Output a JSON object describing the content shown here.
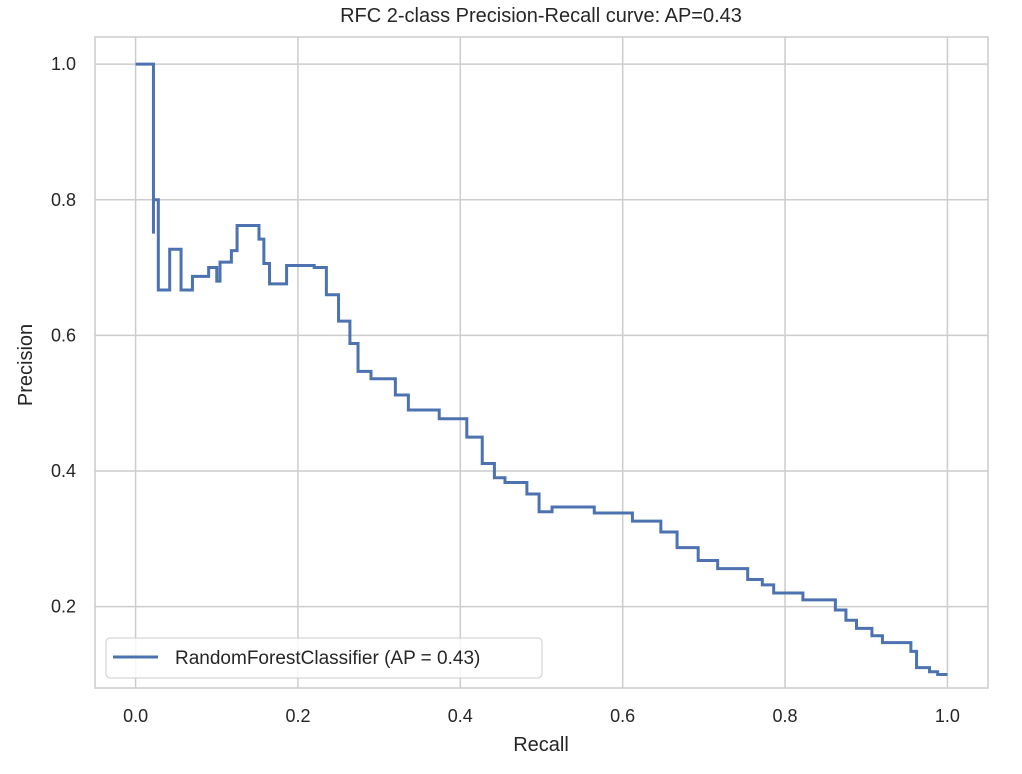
{
  "chart_data": {
    "type": "line",
    "title": "RFC 2-class Precision-Recall curve: AP=0.43",
    "xlabel": "Recall",
    "ylabel": "Precision",
    "xlim": [
      -0.05,
      1.05
    ],
    "ylim": [
      0.08,
      1.04
    ],
    "xticks": [
      0.0,
      0.2,
      0.4,
      0.6,
      0.8,
      1.0
    ],
    "xtick_labels": [
      "0.0",
      "0.2",
      "0.4",
      "0.6",
      "0.8",
      "1.0"
    ],
    "yticks": [
      0.2,
      0.4,
      0.6,
      0.8,
      1.0
    ],
    "ytick_labels": [
      "0.2",
      "0.4",
      "0.6",
      "0.8",
      "1.0"
    ],
    "grid": true,
    "legend_position": "lower-left",
    "series": [
      {
        "name": "RandomForestClassifier (AP = 0.43)",
        "color": "#4c72b0",
        "drawstyle": "steps-post",
        "points": [
          [
            0.0,
            1.0
          ],
          [
            0.022,
            1.0
          ],
          [
            0.022,
            0.75
          ],
          [
            0.022,
            0.8
          ],
          [
            0.028,
            0.8
          ],
          [
            0.028,
            0.667
          ],
          [
            0.042,
            0.667
          ],
          [
            0.042,
            0.727
          ],
          [
            0.056,
            0.727
          ],
          [
            0.056,
            0.667
          ],
          [
            0.07,
            0.667
          ],
          [
            0.07,
            0.687
          ],
          [
            0.09,
            0.687
          ],
          [
            0.09,
            0.7
          ],
          [
            0.1,
            0.7
          ],
          [
            0.1,
            0.68
          ],
          [
            0.104,
            0.68
          ],
          [
            0.104,
            0.708
          ],
          [
            0.118,
            0.708
          ],
          [
            0.118,
            0.725
          ],
          [
            0.125,
            0.725
          ],
          [
            0.125,
            0.762
          ],
          [
            0.152,
            0.762
          ],
          [
            0.152,
            0.742
          ],
          [
            0.158,
            0.742
          ],
          [
            0.158,
            0.706
          ],
          [
            0.165,
            0.706
          ],
          [
            0.165,
            0.676
          ],
          [
            0.186,
            0.676
          ],
          [
            0.186,
            0.703
          ],
          [
            0.22,
            0.703
          ],
          [
            0.22,
            0.7
          ],
          [
            0.235,
            0.7
          ],
          [
            0.235,
            0.66
          ],
          [
            0.25,
            0.66
          ],
          [
            0.25,
            0.621
          ],
          [
            0.264,
            0.621
          ],
          [
            0.264,
            0.588
          ],
          [
            0.274,
            0.588
          ],
          [
            0.274,
            0.547
          ],
          [
            0.29,
            0.547
          ],
          [
            0.29,
            0.536
          ],
          [
            0.32,
            0.536
          ],
          [
            0.32,
            0.512
          ],
          [
            0.336,
            0.512
          ],
          [
            0.336,
            0.49
          ],
          [
            0.374,
            0.49
          ],
          [
            0.374,
            0.477
          ],
          [
            0.408,
            0.477
          ],
          [
            0.408,
            0.45
          ],
          [
            0.427,
            0.45
          ],
          [
            0.427,
            0.411
          ],
          [
            0.442,
            0.411
          ],
          [
            0.442,
            0.39
          ],
          [
            0.455,
            0.39
          ],
          [
            0.455,
            0.383
          ],
          [
            0.482,
            0.383
          ],
          [
            0.482,
            0.366
          ],
          [
            0.497,
            0.366
          ],
          [
            0.497,
            0.34
          ],
          [
            0.513,
            0.34
          ],
          [
            0.513,
            0.347
          ],
          [
            0.565,
            0.347
          ],
          [
            0.565,
            0.338
          ],
          [
            0.612,
            0.338
          ],
          [
            0.612,
            0.326
          ],
          [
            0.647,
            0.326
          ],
          [
            0.647,
            0.31
          ],
          [
            0.667,
            0.31
          ],
          [
            0.667,
            0.287
          ],
          [
            0.693,
            0.287
          ],
          [
            0.693,
            0.268
          ],
          [
            0.717,
            0.268
          ],
          [
            0.717,
            0.256
          ],
          [
            0.754,
            0.256
          ],
          [
            0.754,
            0.24
          ],
          [
            0.772,
            0.24
          ],
          [
            0.772,
            0.232
          ],
          [
            0.786,
            0.232
          ],
          [
            0.786,
            0.22
          ],
          [
            0.822,
            0.22
          ],
          [
            0.822,
            0.21
          ],
          [
            0.862,
            0.21
          ],
          [
            0.862,
            0.195
          ],
          [
            0.875,
            0.195
          ],
          [
            0.875,
            0.18
          ],
          [
            0.888,
            0.18
          ],
          [
            0.888,
            0.168
          ],
          [
            0.907,
            0.168
          ],
          [
            0.907,
            0.157
          ],
          [
            0.92,
            0.157
          ],
          [
            0.92,
            0.147
          ],
          [
            0.955,
            0.147
          ],
          [
            0.955,
            0.134
          ],
          [
            0.962,
            0.134
          ],
          [
            0.962,
            0.11
          ],
          [
            0.978,
            0.11
          ],
          [
            0.978,
            0.104
          ],
          [
            0.988,
            0.104
          ],
          [
            0.988,
            0.1
          ],
          [
            1.0,
            0.1
          ]
        ]
      }
    ]
  }
}
